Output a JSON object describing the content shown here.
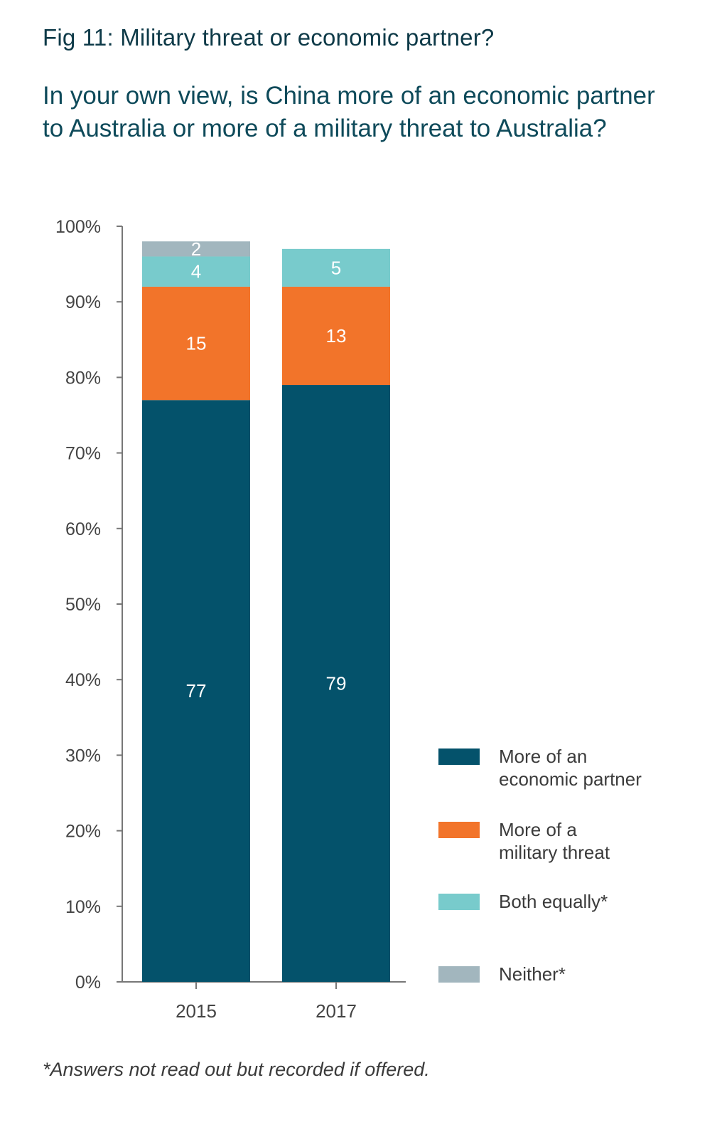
{
  "title": "Fig 11: Military threat or economic partner?",
  "subtitle": "In your own view, is China more of an economic partner to Australia or more of a military threat to Australia?",
  "footnote": "*Answers not read out but recorded if offered.",
  "chart_data": {
    "type": "bar",
    "stacked": true,
    "title": "Fig 11: Military threat or economic partner?",
    "xlabel": "",
    "ylabel": "",
    "ylim": [
      0,
      100
    ],
    "yticks": [
      "0%",
      "10%",
      "20%",
      "30%",
      "40%",
      "50%",
      "60%",
      "70%",
      "80%",
      "90%",
      "100%"
    ],
    "categories": [
      "2015",
      "2017"
    ],
    "series": [
      {
        "name": "More of an economic partner",
        "legend_label": "More of an\neconomic partner",
        "color": "#04526b",
        "values": [
          77,
          79
        ]
      },
      {
        "name": "More of a military threat",
        "legend_label": "More of a\nmilitary threat",
        "color": "#f2742a",
        "values": [
          15,
          13
        ]
      },
      {
        "name": "Both equally*",
        "legend_label": "Both equally*",
        "color": "#78cbcc",
        "values": [
          4,
          5
        ]
      },
      {
        "name": "Neither*",
        "legend_label": "Neither*",
        "color": "#a2b6be",
        "values": [
          2,
          null
        ]
      }
    ],
    "grid": false,
    "legend_position": "right"
  }
}
